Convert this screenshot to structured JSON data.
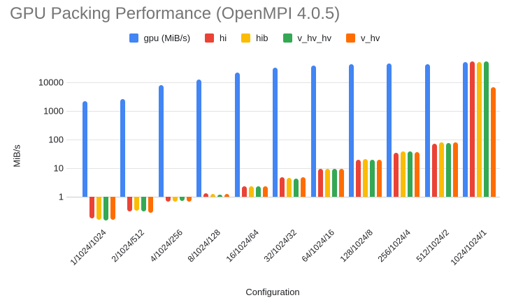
{
  "chart_data": {
    "type": "bar",
    "title": "GPU Packing Performance (OpenMPI 4.0.5)",
    "title_color": "#757575",
    "xlabel": "Configuration",
    "ylabel": "MiB/s",
    "y_scale": "log",
    "y_ticks": [
      1,
      10,
      100,
      1000,
      10000
    ],
    "ylim": [
      0.1,
      60000
    ],
    "grid": "horizontal-only",
    "legend_position": "top-center",
    "categories": [
      "1/1024/1024",
      "2/1024/512",
      "4/1024/256",
      "8/1024/128",
      "16/1024/64",
      "32/1024/32",
      "64/1024/16",
      "128/1024/8",
      "256/1024/4",
      "512/1024/2",
      "1024/1024/1"
    ],
    "series": [
      {
        "name": "gpu (MiB/s)",
        "color": "#4285F4",
        "values": [
          2200,
          2600,
          8000,
          12500,
          22000,
          32000,
          39000,
          43000,
          45000,
          42000,
          50000
        ]
      },
      {
        "name": "hi",
        "color": "#EA4335",
        "values": [
          0.18,
          0.31,
          0.68,
          1.3,
          2.3,
          4.7,
          9.7,
          20,
          35,
          70,
          54000
        ]
      },
      {
        "name": "hib",
        "color": "#FBBC04",
        "values": [
          0.16,
          0.32,
          0.68,
          1.25,
          2.35,
          4.5,
          9.5,
          21,
          38,
          78,
          52000
        ]
      },
      {
        "name": "v_hv_hv",
        "color": "#34A853",
        "values": [
          0.15,
          0.3,
          0.72,
          1.2,
          2.3,
          4.4,
          9.4,
          20,
          38,
          76,
          55000
        ]
      },
      {
        "name": "v_hv",
        "color": "#FF6D00",
        "values": [
          0.16,
          0.28,
          0.68,
          1.25,
          2.35,
          4.8,
          9.7,
          20,
          37,
          78,
          6800
        ]
      }
    ]
  }
}
